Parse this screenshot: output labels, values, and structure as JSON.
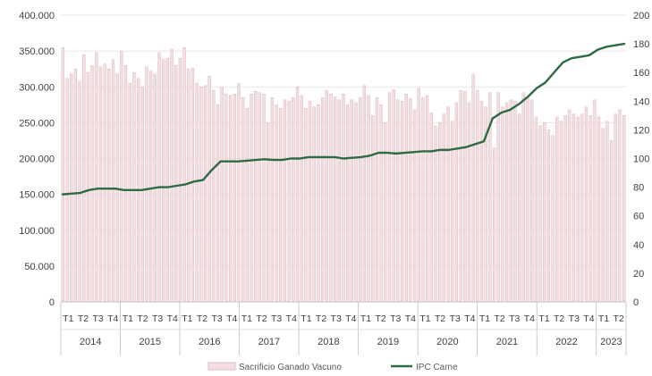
{
  "chart_data": {
    "type": "bar",
    "title": "",
    "colors": {
      "bar_fill": "#f3dde0",
      "bar_stroke": "#d9b0b6",
      "line": "#2e6b43",
      "grid": "#e6e6e6"
    },
    "y_left": {
      "min": 0,
      "max": 400000,
      "step": 50000,
      "ticks": [
        "0",
        "50.000",
        "100.000",
        "150.000",
        "200.000",
        "250.000",
        "300.000",
        "350.000",
        "400.000"
      ]
    },
    "y_right": {
      "min": 0,
      "max": 200,
      "step": 20,
      "ticks": [
        "0",
        "20",
        "40",
        "60",
        "80",
        "100",
        "120",
        "140",
        "160",
        "180",
        "200"
      ]
    },
    "quarter_labels": [
      "T1",
      "T2",
      "T3",
      "T4",
      "T1",
      "T2",
      "T3",
      "T4",
      "T1",
      "T2",
      "T3",
      "T4",
      "T1",
      "T2",
      "T3",
      "T4",
      "T1",
      "T2",
      "T3",
      "T4",
      "T1",
      "T2",
      "T3",
      "T4",
      "T1",
      "T2",
      "T3",
      "T4",
      "T1",
      "T2",
      "T3",
      "T4",
      "T1",
      "T2",
      "T3",
      "T4",
      "T1",
      "T2"
    ],
    "years": [
      {
        "label": "2014",
        "quarters": 4
      },
      {
        "label": "2015",
        "quarters": 4
      },
      {
        "label": "2016",
        "quarters": 4
      },
      {
        "label": "2017",
        "quarters": 4
      },
      {
        "label": "2018",
        "quarters": 4
      },
      {
        "label": "2019",
        "quarters": 4
      },
      {
        "label": "2020",
        "quarters": 4
      },
      {
        "label": "2021",
        "quarters": 4
      },
      {
        "label": "2022",
        "quarters": 4
      },
      {
        "label": "2023",
        "quarters": 2
      }
    ],
    "series": [
      {
        "name": "Sacrificio Ganado Vacuno",
        "kind": "bar",
        "axis": "left",
        "values": [
          355000,
          312000,
          318000,
          325000,
          308000,
          345000,
          320000,
          330000,
          348000,
          328000,
          332000,
          325000,
          338000,
          318000,
          350000,
          330000,
          305000,
          320000,
          312000,
          300000,
          328000,
          322000,
          318000,
          348000,
          338000,
          340000,
          352000,
          330000,
          340000,
          355000,
          325000,
          326000,
          305000,
          300000,
          302000,
          315000,
          295000,
          275000,
          300000,
          290000,
          288000,
          290000,
          305000,
          285000,
          270000,
          290000,
          294000,
          292000,
          290000,
          250000,
          285000,
          275000,
          270000,
          282000,
          280000,
          285000,
          300000,
          288000,
          270000,
          280000,
          272000,
          275000,
          285000,
          295000,
          290000,
          286000,
          282000,
          290000,
          275000,
          282000,
          278000,
          285000,
          302000,
          288000,
          260000,
          285000,
          275000,
          250000,
          292000,
          296000,
          282000,
          280000,
          290000,
          284000,
          268000,
          298000,
          285000,
          288000,
          264000,
          245000,
          250000,
          262000,
          272000,
          252000,
          278000,
          295000,
          294000,
          278000,
          318000,
          295000,
          280000,
          272000,
          292000,
          215000,
          292000,
          272000,
          278000,
          282000,
          280000,
          262000,
          292000,
          285000,
          282000,
          258000,
          246000,
          250000,
          240000,
          232000,
          258000,
          252000,
          260000,
          268000,
          262000,
          258000,
          262000,
          272000,
          260000,
          282000,
          258000,
          242000,
          252000,
          225000,
          262000,
          268000,
          260000
        ]
      },
      {
        "name": "IPC Carne",
        "kind": "line",
        "axis": "right",
        "values": [
          75,
          75.5,
          76,
          78,
          79,
          79,
          79,
          78,
          78,
          78,
          79,
          80,
          80,
          81,
          82,
          84,
          85,
          92,
          98,
          98,
          98,
          98.5,
          99,
          99.5,
          99,
          99,
          100,
          100,
          101,
          101,
          101,
          101,
          100,
          100.5,
          101,
          102,
          104,
          104,
          103.5,
          104,
          104.5,
          105,
          105,
          106,
          106,
          107,
          108,
          110,
          112,
          128,
          132,
          134,
          138,
          143,
          149,
          153,
          160,
          167,
          170,
          171,
          172,
          176,
          178,
          179,
          180
        ]
      }
    ],
    "legend": {
      "position": "bottom-center"
    }
  }
}
